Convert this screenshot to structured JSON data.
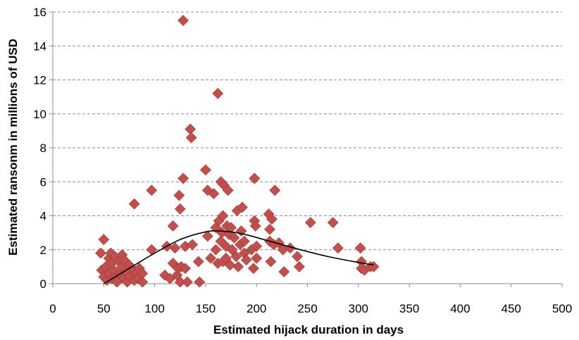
{
  "chart_data": {
    "type": "scatter",
    "xlabel": "Estimated hijack duration in days",
    "ylabel": "Estimated ransonm in millions of USD",
    "xlim": [
      0,
      500
    ],
    "ylim": [
      0,
      16
    ],
    "xticks": [
      0,
      50,
      100,
      150,
      200,
      250,
      300,
      350,
      400,
      450,
      500
    ],
    "yticks": [
      0,
      2,
      4,
      6,
      8,
      10,
      12,
      14,
      16
    ],
    "grid": "horizontal dashed",
    "marker": "diamond",
    "marker_color": "#C0504D",
    "trendline": {
      "type": "polynomial",
      "color": "#000000",
      "points": [
        [
          50,
          0.0
        ],
        [
          75,
          0.9
        ],
        [
          100,
          1.8
        ],
        [
          125,
          2.6
        ],
        [
          150,
          3.05
        ],
        [
          165,
          3.1
        ],
        [
          185,
          2.95
        ],
        [
          210,
          2.55
        ],
        [
          240,
          2.05
        ],
        [
          270,
          1.6
        ],
        [
          300,
          1.25
        ],
        [
          315,
          1.1
        ]
      ]
    },
    "points": [
      [
        47,
        1.8
      ],
      [
        50,
        2.6
      ],
      [
        48,
        0.8
      ],
      [
        50,
        0.4
      ],
      [
        52,
        1.0
      ],
      [
        53,
        0.2
      ],
      [
        55,
        1.5
      ],
      [
        55,
        0.6
      ],
      [
        57,
        1.8
      ],
      [
        58,
        1.2
      ],
      [
        58,
        0.3
      ],
      [
        60,
        0.8
      ],
      [
        61,
        1.6
      ],
      [
        62,
        0.4
      ],
      [
        63,
        0.1
      ],
      [
        65,
        1.3
      ],
      [
        66,
        0.6
      ],
      [
        68,
        1.7
      ],
      [
        68,
        1.0
      ],
      [
        70,
        0.3
      ],
      [
        70,
        1.4
      ],
      [
        72,
        0.7
      ],
      [
        73,
        0.1
      ],
      [
        75,
        1.1
      ],
      [
        76,
        0.4
      ],
      [
        78,
        0.9
      ],
      [
        80,
        0.2
      ],
      [
        80,
        4.7
      ],
      [
        82,
        0.6
      ],
      [
        84,
        0.3
      ],
      [
        85,
        0.9
      ],
      [
        88,
        0.6
      ],
      [
        88,
        0.1
      ],
      [
        97,
        5.5
      ],
      [
        97,
        2.0
      ],
      [
        110,
        0.5
      ],
      [
        112,
        2.2
      ],
      [
        115,
        0.3
      ],
      [
        118,
        3.4
      ],
      [
        118,
        1.2
      ],
      [
        120,
        2.1
      ],
      [
        122,
        0.5
      ],
      [
        123,
        0.9
      ],
      [
        124,
        5.2
      ],
      [
        125,
        4.4
      ],
      [
        125,
        0.1
      ],
      [
        126,
        1.0
      ],
      [
        128,
        15.5
      ],
      [
        128,
        6.2
      ],
      [
        130,
        2.2
      ],
      [
        130,
        0.9
      ],
      [
        132,
        0.1
      ],
      [
        135,
        9.1
      ],
      [
        136,
        8.6
      ],
      [
        137,
        2.3
      ],
      [
        143,
        1.3
      ],
      [
        144,
        0.1
      ],
      [
        150,
        6.7
      ],
      [
        152,
        2.8
      ],
      [
        152,
        5.5
      ],
      [
        155,
        1.5
      ],
      [
        158,
        5.3
      ],
      [
        160,
        3.3
      ],
      [
        160,
        2.0
      ],
      [
        162,
        11.2
      ],
      [
        162,
        1.2
      ],
      [
        163,
        3.7
      ],
      [
        165,
        2.5
      ],
      [
        165,
        6.0
      ],
      [
        166,
        3.0
      ],
      [
        167,
        4.0
      ],
      [
        167,
        1.3
      ],
      [
        168,
        5.8
      ],
      [
        170,
        2.2
      ],
      [
        170,
        1.5
      ],
      [
        171,
        3.4
      ],
      [
        172,
        5.5
      ],
      [
        173,
        2.9
      ],
      [
        174,
        1.1
      ],
      [
        175,
        3.3
      ],
      [
        176,
        2.0
      ],
      [
        178,
        2.7
      ],
      [
        180,
        1.6
      ],
      [
        181,
        4.3
      ],
      [
        182,
        1.0
      ],
      [
        184,
        2.3
      ],
      [
        185,
        3.1
      ],
      [
        186,
        4.5
      ],
      [
        188,
        2.5
      ],
      [
        188,
        1.8
      ],
      [
        190,
        1.4
      ],
      [
        195,
        2.0
      ],
      [
        197,
        0.9
      ],
      [
        198,
        6.2
      ],
      [
        198,
        3.7
      ],
      [
        199,
        3.4
      ],
      [
        200,
        2.2
      ],
      [
        200,
        1.5
      ],
      [
        212,
        4.1
      ],
      [
        213,
        3.2
      ],
      [
        213,
        2.5
      ],
      [
        214,
        1.3
      ],
      [
        215,
        3.8
      ],
      [
        217,
        2.3
      ],
      [
        218,
        5.5
      ],
      [
        222,
        2.4
      ],
      [
        226,
        2.0
      ],
      [
        227,
        0.7
      ],
      [
        233,
        2.1
      ],
      [
        240,
        1.6
      ],
      [
        242,
        1.0
      ],
      [
        253,
        3.6
      ],
      [
        275,
        3.6
      ],
      [
        280,
        2.1
      ],
      [
        302,
        2.1
      ],
      [
        303,
        1.3
      ],
      [
        303,
        0.9
      ],
      [
        306,
        0.8
      ],
      [
        312,
        1.0
      ],
      [
        315,
        1.0
      ]
    ]
  }
}
